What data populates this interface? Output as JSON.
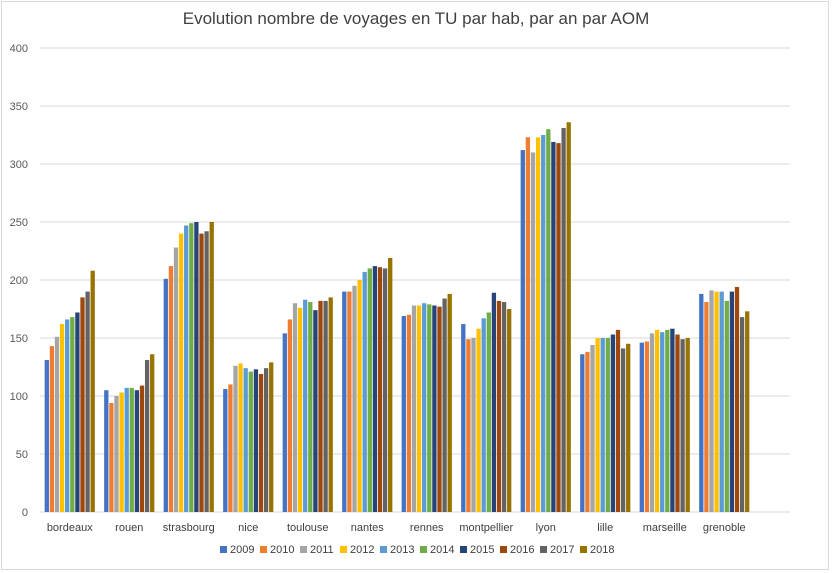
{
  "chart_data": {
    "type": "bar",
    "title": "Evolution nombre de voyages en TU par hab, par an par AOM",
    "xlabel": "",
    "ylabel": "",
    "ylim": [
      0,
      400
    ],
    "yticks": [
      0,
      50,
      100,
      150,
      200,
      250,
      300,
      350,
      400
    ],
    "grid": true,
    "legend_position": "bottom",
    "categories": [
      "bordeaux",
      "rouen",
      "strasbourg",
      "nice",
      "toulouse",
      "nantes",
      "rennes",
      "montpellier",
      "lyon",
      "lille",
      "marseille",
      "grenoble"
    ],
    "series": [
      {
        "name": "2009",
        "color": "#4472c4",
        "values": [
          131,
          105,
          201,
          106,
          154,
          190,
          169,
          162,
          312,
          136,
          146,
          188
        ]
      },
      {
        "name": "2010",
        "color": "#ed7d31",
        "values": [
          143,
          94,
          212,
          110,
          166,
          190,
          170,
          149,
          323,
          138,
          147,
          181
        ]
      },
      {
        "name": "2011",
        "color": "#a5a5a5",
        "values": [
          151,
          100,
          228,
          126,
          180,
          195,
          178,
          150,
          310,
          144,
          154,
          191
        ]
      },
      {
        "name": "2012",
        "color": "#ffc000",
        "values": [
          162,
          103,
          240,
          128,
          176,
          200,
          178,
          158,
          323,
          150,
          157,
          190
        ]
      },
      {
        "name": "2013",
        "color": "#5b9bd5",
        "values": [
          166,
          107,
          247,
          124,
          183,
          207,
          180,
          167,
          325,
          150,
          155,
          190
        ]
      },
      {
        "name": "2014",
        "color": "#70ad47",
        "values": [
          168,
          107,
          249,
          121,
          181,
          210,
          179,
          172,
          330,
          150,
          157,
          182
        ]
      },
      {
        "name": "2015",
        "color": "#264478",
        "values": [
          172,
          105,
          250,
          123,
          174,
          212,
          178,
          189,
          319,
          153,
          158,
          190
        ]
      },
      {
        "name": "2016",
        "color": "#9e480e",
        "values": [
          185,
          109,
          240,
          119,
          182,
          211,
          177,
          182,
          318,
          157,
          153,
          194
        ]
      },
      {
        "name": "2017",
        "color": "#636363",
        "values": [
          190,
          131,
          242,
          124,
          182,
          210,
          184,
          181,
          331,
          141,
          149,
          168
        ]
      },
      {
        "name": "2018",
        "color": "#997300",
        "values": [
          208,
          136,
          250,
          129,
          185,
          219,
          188,
          175,
          336,
          145,
          150,
          173
        ]
      }
    ]
  }
}
